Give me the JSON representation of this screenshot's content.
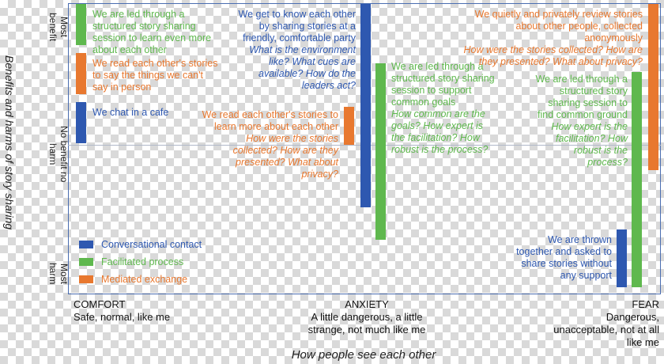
{
  "colors": {
    "conversational": "#2e58b0",
    "facilitated": "#5fb84e",
    "mediated": "#e8782f"
  },
  "y_axis": {
    "title": "Benefits and harms of story sharing",
    "levels": [
      "Most benefit",
      "No benefit no harm",
      "Most harm"
    ]
  },
  "x_axis": {
    "title": "How people see each other",
    "categories": [
      {
        "name": "COMFORT",
        "desc": "Safe, normal, like me"
      },
      {
        "name": "ANXIETY",
        "desc": "A little dangerous, a little strange, not much like me"
      },
      {
        "name": "FEAR",
        "desc": "Dangerous, unacceptable, not at all like me"
      }
    ]
  },
  "legend": [
    {
      "label": "Conversational contact",
      "type": "conversational"
    },
    {
      "label": "Facilitated process",
      "type": "facilitated"
    },
    {
      "label": "Mediated exchange",
      "type": "mediated"
    }
  ],
  "items": [
    {
      "type": "facilitated",
      "text": "We are led through a structured story sharing session to learn even more about each other",
      "question": ""
    },
    {
      "type": "mediated",
      "text": "We read each other's stories to say the things we can't say in person",
      "question": ""
    },
    {
      "type": "conversational",
      "text": "We chat in a cafe",
      "question": ""
    },
    {
      "type": "conversational",
      "text": "We get to know each other by sharing stories at a friendly, comfortable party",
      "question": "What is the environment like? What cues are available? How do the leaders act?"
    },
    {
      "type": "mediated",
      "text": "We read each other's stories to learn more about each other",
      "question": "How were the stories collected? How are they presented? What about privacy?"
    },
    {
      "type": "facilitated",
      "text": "We are led through a structured story sharing session to support common goals",
      "question": "How common are the goals? How expert is the facilitation? How robust is the process?"
    },
    {
      "type": "mediated",
      "text": "We quietly and privately review stories about other people, collected anonymously",
      "question": "How were the stories collected? How are they presented? What about privacy?"
    },
    {
      "type": "facilitated",
      "text": "We are led through a structured story sharing session to find common ground",
      "question": "How expert is the facilitation? How robust is the process?"
    },
    {
      "type": "conversational",
      "text": "We are thrown together and asked to share stories without any support",
      "question": ""
    }
  ]
}
